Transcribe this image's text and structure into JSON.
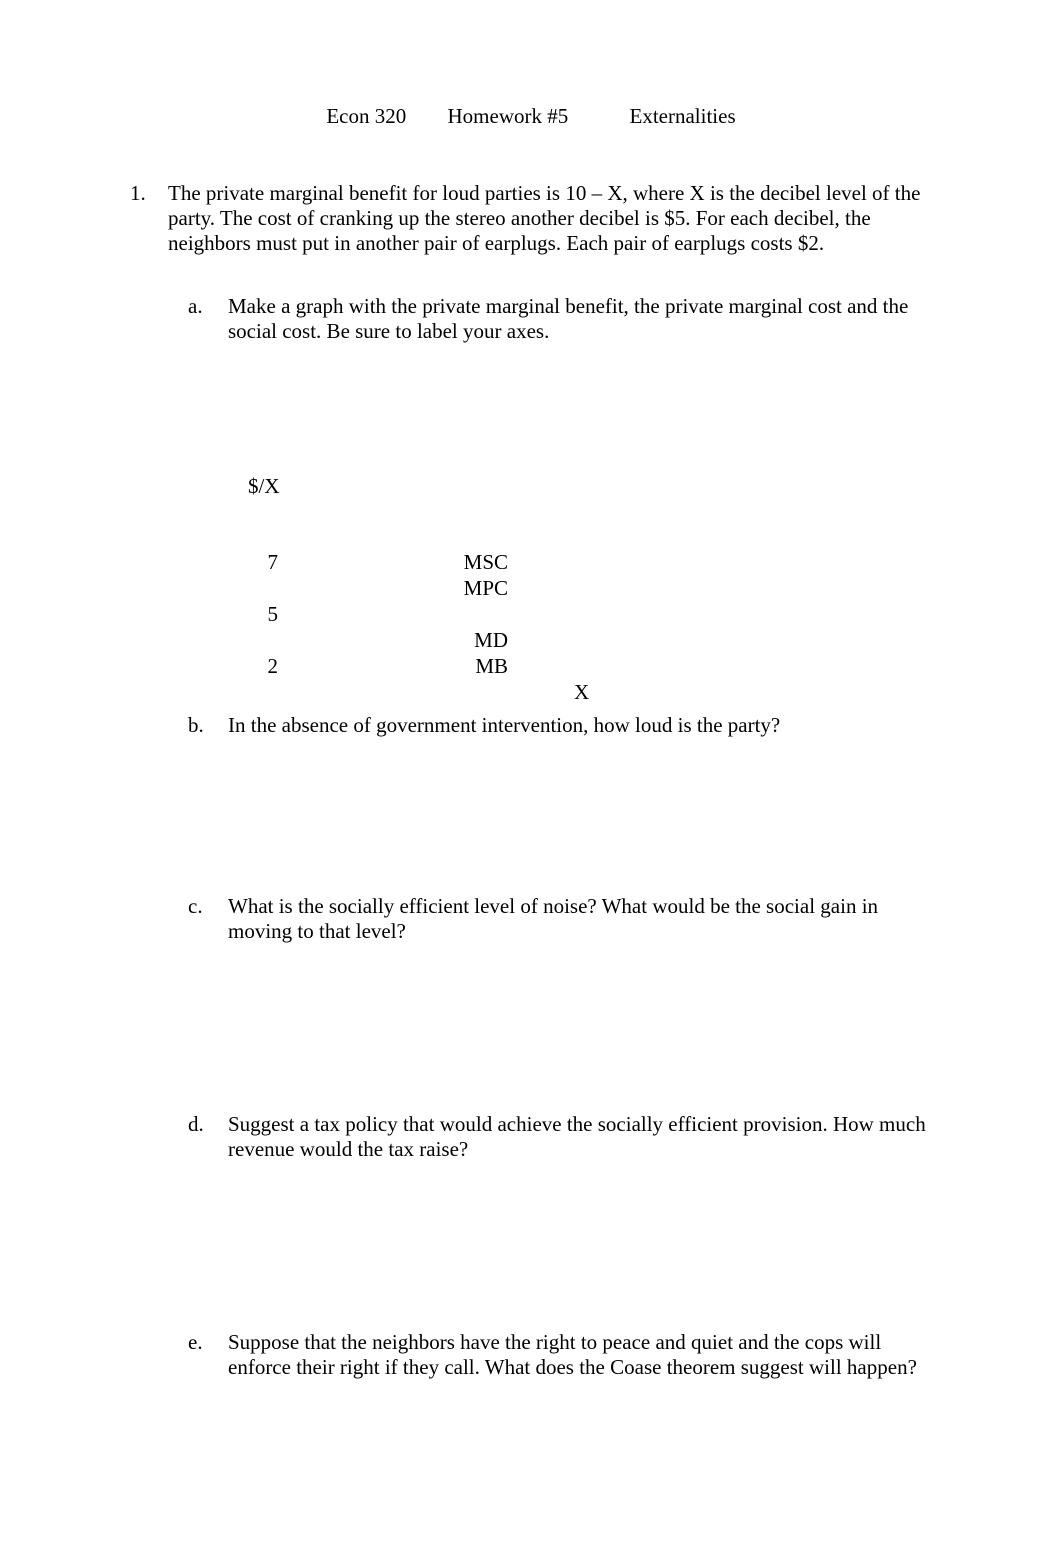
{
  "header": {
    "course": "Econ 320",
    "hw": "Homework #5",
    "topic": "Externalities"
  },
  "question": {
    "number": "1.",
    "text": "The private marginal benefit for loud parties is 10 – X, where X is the decibel level of the party.  The cost of cranking up the stereo another decibel is $5.   For each decibel, the neighbors must put in another pair of earplugs.  Each pair of earplugs costs $2."
  },
  "partA": {
    "letter": "a.",
    "text": "Make a graph with the private marginal benefit, the private marginal cost and the social cost.  Be sure to label your axes."
  },
  "graph": {
    "y_axis_label": "$/X",
    "x_axis_label": "X",
    "rows": [
      {
        "tick": "7",
        "label": "MSC"
      },
      {
        "tick": "",
        "label": "MPC"
      },
      {
        "tick": "5",
        "label": ""
      },
      {
        "tick": "",
        "label": "MD"
      },
      {
        "tick": "2",
        "label": "MB"
      }
    ],
    "colors": {
      "background": "#ffffff",
      "text": "#000000"
    }
  },
  "partB": {
    "letter": "b.",
    "text": "In the absence of government intervention, how loud is the party?"
  },
  "partC": {
    "letter": "c.",
    "text": "What is the socially efficient level of noise?  What would be the social gain in moving to that level?"
  },
  "partD": {
    "letter": "d.",
    "text": "Suggest a tax policy that would achieve the socially efficient provision.  How much revenue would the tax raise?"
  },
  "partE": {
    "letter": "e.",
    "text": "Suppose that the neighbors have the right to peace and quiet and the cops will enforce their right if they call.  What does the Coase theorem suggest will happen?"
  }
}
